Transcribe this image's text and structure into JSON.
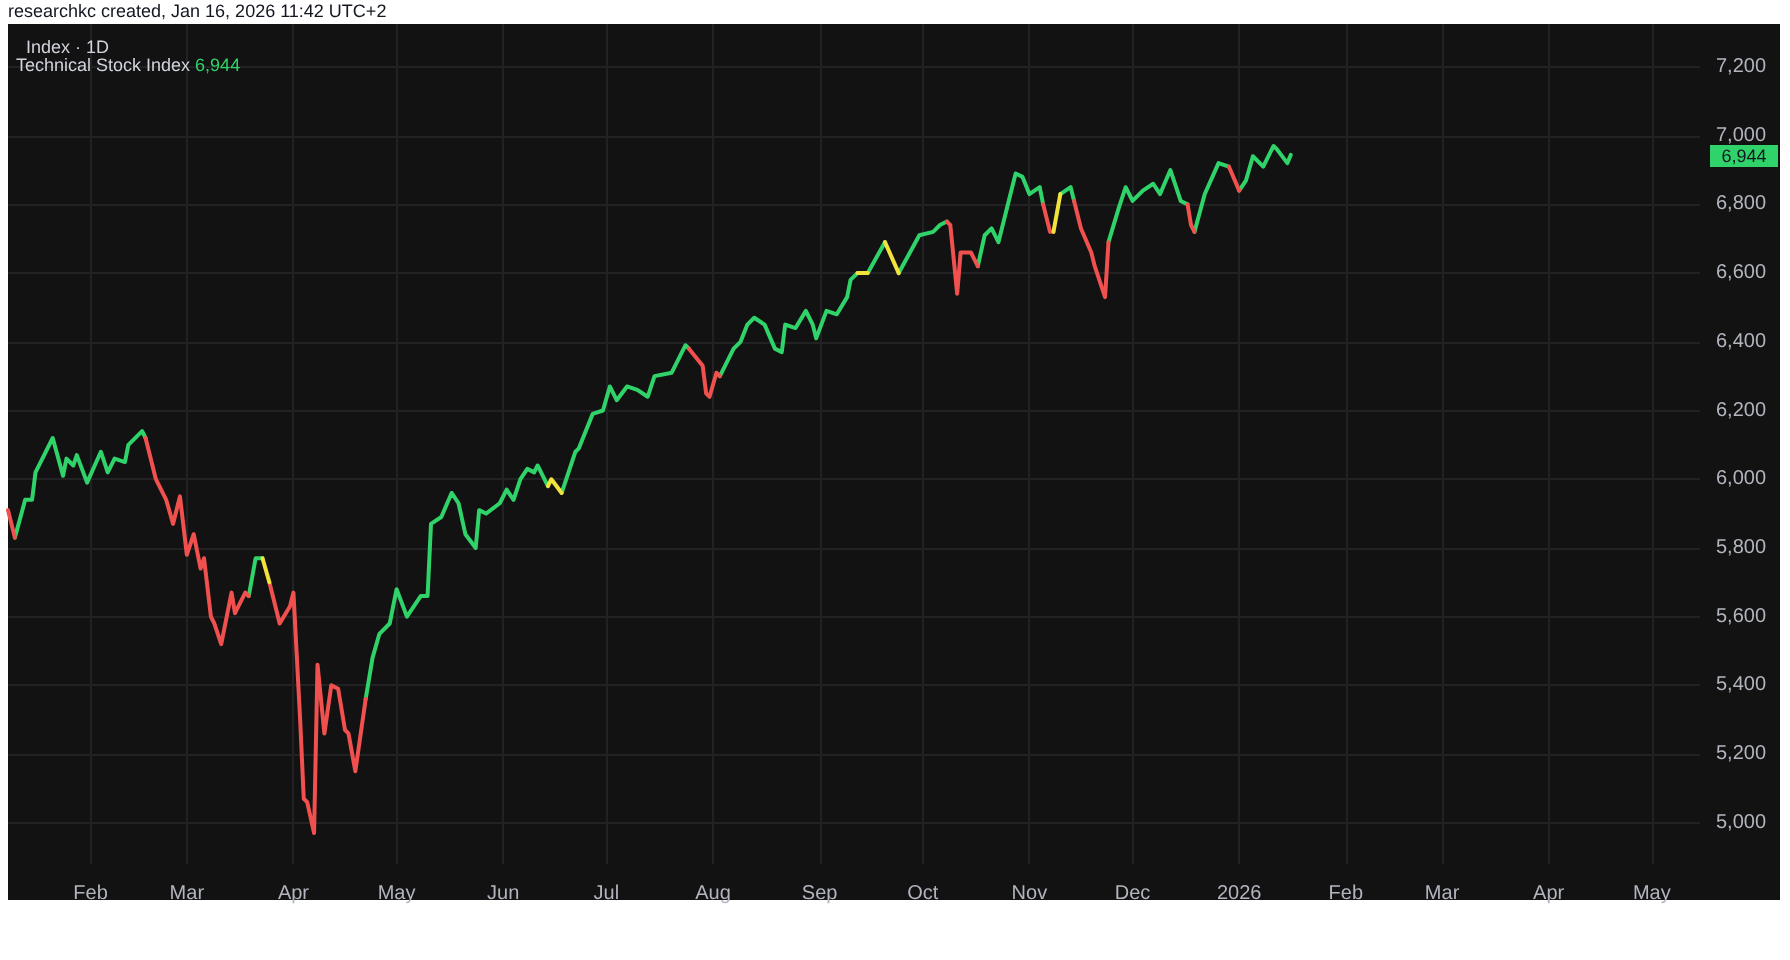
{
  "chart_data": {
    "type": "line",
    "title": "Index · 1D",
    "subtitle": "Technical Stock Index 6,944",
    "annotations": [
      "researchkc created, Jan 16, 2026 11:42 UTC+2",
      "6,944"
    ],
    "xlim": [
      "2025-01-08",
      "2026-05-15"
    ],
    "xticks": [
      {
        "value": "2025-02-01",
        "label": "Feb"
      },
      {
        "value": "2025-03-01",
        "label": "Mar"
      },
      {
        "value": "2025-04-01",
        "label": "Apr"
      },
      {
        "value": "2025-05-01",
        "label": "May"
      },
      {
        "value": "2025-06-01",
        "label": "Jun"
      },
      {
        "value": "2025-07-01",
        "label": "Jul"
      },
      {
        "value": "2025-08-01",
        "label": "Aug"
      },
      {
        "value": "2025-09-01",
        "label": "Sep"
      },
      {
        "value": "2025-10-01",
        "label": "Oct"
      },
      {
        "value": "2025-11-01",
        "label": "Nov"
      },
      {
        "value": "2025-12-01",
        "label": "Dec"
      },
      {
        "value": "2026-01-01",
        "label": "2026"
      },
      {
        "value": "2026-02-01",
        "label": "Feb"
      },
      {
        "value": "2026-03-01",
        "label": "Mar"
      },
      {
        "value": "2026-04-01",
        "label": "Apr"
      },
      {
        "value": "2026-05-01",
        "label": "May"
      }
    ],
    "ylim": [
      4880,
      7325
    ],
    "yticks": [
      {
        "value": 5000,
        "label": "5,000"
      },
      {
        "value": 5200,
        "label": "5,200"
      },
      {
        "value": 5400,
        "label": "5,400"
      },
      {
        "value": 5600,
        "label": "5,600"
      },
      {
        "value": 5800,
        "label": "5,800"
      },
      {
        "value": 6000,
        "label": "6,000"
      },
      {
        "value": 6200,
        "label": "6,200"
      },
      {
        "value": 6400,
        "label": "6,400"
      },
      {
        "value": 6600,
        "label": "6,600"
      },
      {
        "value": 6800,
        "label": "6,800"
      },
      {
        "value": 7000,
        "label": "7,000"
      },
      {
        "value": 7200,
        "label": "7,200"
      }
    ],
    "grid": true,
    "marker": "none",
    "line_style": "solid",
    "series": [
      {
        "color": "#2fd36a",
        "x": [
          "2025-01-10",
          "2025-01-13",
          "2025-01-15",
          "2025-01-16",
          "2025-01-21",
          "2025-01-24",
          "2025-01-25",
          "2025-01-27",
          "2025-01-28",
          "2025-01-31",
          "2025-02-04",
          "2025-02-06",
          "2025-02-08",
          "2025-02-11",
          "2025-02-12",
          "2025-02-16",
          "2025-02-17"
        ],
        "values": [
          5830,
          5940,
          5940,
          6020,
          6120,
          6010,
          6060,
          6040,
          6070,
          5990,
          6080,
          6020,
          6060,
          6050,
          6100,
          6140,
          6120
        ]
      },
      {
        "color": "#2fd36a",
        "x": [
          "2025-03-19",
          "2025-03-21",
          "2025-03-23"
        ],
        "values": [
          5660,
          5770,
          5770
        ]
      },
      {
        "color": "#2fd36a",
        "x": [
          "2025-04-22",
          "2025-04-24",
          "2025-04-26",
          "2025-04-29",
          "2025-05-01",
          "2025-05-04",
          "2025-05-08",
          "2025-05-10",
          "2025-05-11",
          "2025-05-14",
          "2025-05-17",
          "2025-05-19",
          "2025-05-21",
          "2025-05-24",
          "2025-05-25",
          "2025-05-27",
          "2025-05-31",
          "2025-06-02",
          "2025-06-04",
          "2025-06-06",
          "2025-06-08",
          "2025-06-10",
          "2025-06-11",
          "2025-06-14"
        ],
        "values": [
          5360,
          5480,
          5550,
          5580,
          5680,
          5600,
          5660,
          5660,
          5870,
          5890,
          5960,
          5930,
          5840,
          5800,
          5910,
          5900,
          5930,
          5970,
          5940,
          6000,
          6030,
          6020,
          6040,
          5980
        ]
      },
      {
        "color": "#2fd36a",
        "x": [
          "2025-06-18",
          "2025-06-22",
          "2025-06-23",
          "2025-06-27",
          "2025-06-30",
          "2025-07-02",
          "2025-07-04",
          "2025-07-07",
          "2025-07-10",
          "2025-07-13",
          "2025-07-15",
          "2025-07-20",
          "2025-07-24",
          "2025-07-25"
        ],
        "values": [
          5960,
          6080,
          6090,
          6190,
          6200,
          6270,
          6230,
          6270,
          6260,
          6240,
          6300,
          6310,
          6390,
          6380
        ]
      },
      {
        "color": "#2fd36a",
        "x": [
          "2025-08-03",
          "2025-08-05",
          "2025-08-07",
          "2025-08-09",
          "2025-08-11",
          "2025-08-13",
          "2025-08-16",
          "2025-08-19",
          "2025-08-21",
          "2025-08-22",
          "2025-08-25",
          "2025-08-28",
          "2025-08-30",
          "2025-08-31",
          "2025-09-03",
          "2025-09-06",
          "2025-09-09",
          "2025-09-10",
          "2025-09-12"
        ],
        "values": [
          6300,
          6340,
          6380,
          6400,
          6450,
          6470,
          6450,
          6380,
          6370,
          6450,
          6440,
          6490,
          6450,
          6410,
          6490,
          6480,
          6530,
          6580,
          6600
        ]
      },
      {
        "color": "#2fd36a",
        "x": [
          "2025-09-15",
          "2025-09-20"
        ],
        "values": [
          6600,
          6690
        ]
      },
      {
        "color": "#2fd36a",
        "x": [
          "2025-09-24",
          "2025-09-30",
          "2025-10-04",
          "2025-10-06",
          "2025-10-08"
        ],
        "values": [
          6600,
          6710,
          6720,
          6740,
          6750
        ]
      },
      {
        "color": "#2fd36a",
        "x": [
          "2025-10-17",
          "2025-10-19",
          "2025-10-21",
          "2025-10-23",
          "2025-10-26",
          "2025-10-28",
          "2025-10-30",
          "2025-11-01",
          "2025-11-04",
          "2025-11-05"
        ],
        "values": [
          6620,
          6710,
          6730,
          6690,
          6810,
          6890,
          6880,
          6830,
          6850,
          6800
        ]
      },
      {
        "color": "#2fd36a",
        "x": [
          "2025-11-10",
          "2025-11-13",
          "2025-11-14"
        ],
        "values": [
          6830,
          6850,
          6810
        ]
      },
      {
        "color": "#2fd36a",
        "x": [
          "2025-11-24",
          "2025-11-27",
          "2025-11-29",
          "2025-12-01",
          "2025-12-04",
          "2025-12-07",
          "2025-12-09",
          "2025-12-12",
          "2025-12-15",
          "2025-12-17"
        ],
        "values": [
          6690,
          6790,
          6850,
          6810,
          6840,
          6860,
          6830,
          6900,
          6810,
          6800
        ]
      },
      {
        "color": "#2fd36a",
        "x": [
          "2025-12-19",
          "2025-12-22",
          "2025-12-26",
          "2025-12-29"
        ],
        "values": [
          6720,
          6830,
          6920,
          6910
        ]
      },
      {
        "color": "#2fd36a",
        "x": [
          "2026-01-01",
          "2026-01-03",
          "2026-01-05",
          "2026-01-08",
          "2026-01-11",
          "2026-01-12",
          "2026-01-15",
          "2026-01-16"
        ],
        "values": [
          6840,
          6870,
          6940,
          6910,
          6970,
          6960,
          6920,
          6944
        ]
      },
      {
        "color": "#f0514f",
        "x": [
          "2025-01-08",
          "2025-01-10"
        ],
        "values": [
          5910,
          5830
        ]
      },
      {
        "color": "#f0514f",
        "x": [
          "2025-02-17",
          "2025-02-20",
          "2025-02-23",
          "2025-02-25",
          "2025-02-27",
          "2025-03-01",
          "2025-03-03",
          "2025-03-05",
          "2025-03-06",
          "2025-03-08",
          "2025-03-09",
          "2025-03-11",
          "2025-03-14",
          "2025-03-15",
          "2025-03-18",
          "2025-03-19"
        ],
        "values": [
          6120,
          6000,
          5940,
          5870,
          5950,
          5780,
          5840,
          5740,
          5770,
          5600,
          5580,
          5520,
          5670,
          5610,
          5670,
          5660
        ]
      },
      {
        "color": "#f0514f",
        "x": [
          "2025-03-25",
          "2025-03-28",
          "2025-03-31",
          "2025-04-01",
          "2025-04-03",
          "2025-04-04",
          "2025-04-05",
          "2025-04-07",
          "2025-04-08",
          "2025-04-10",
          "2025-04-12",
          "2025-04-14",
          "2025-04-16",
          "2025-04-17",
          "2025-04-19",
          "2025-04-22"
        ],
        "values": [
          5700,
          5580,
          5630,
          5670,
          5290,
          5070,
          5060,
          4970,
          5460,
          5260,
          5400,
          5390,
          5270,
          5260,
          5150,
          5360
        ]
      },
      {
        "color": "#f0514f",
        "x": [
          "2025-07-25",
          "2025-07-29",
          "2025-07-30",
          "2025-07-31",
          "2025-08-02",
          "2025-08-03"
        ],
        "values": [
          6380,
          6330,
          6250,
          6240,
          6310,
          6300
        ]
      },
      {
        "color": "#f0514f",
        "x": [
          "2025-10-08",
          "2025-10-09",
          "2025-10-11",
          "2025-10-12",
          "2025-10-15",
          "2025-10-17"
        ],
        "values": [
          6750,
          6740,
          6540,
          6660,
          6660,
          6620
        ]
      },
      {
        "color": "#f0514f",
        "x": [
          "2025-11-05",
          "2025-11-07",
          "2025-11-08"
        ],
        "values": [
          6800,
          6720,
          6720
        ]
      },
      {
        "color": "#f0514f",
        "x": [
          "2025-11-14",
          "2025-11-16",
          "2025-11-19",
          "2025-11-20",
          "2025-11-23",
          "2025-11-24"
        ],
        "values": [
          6810,
          6730,
          6660,
          6620,
          6530,
          6690
        ]
      },
      {
        "color": "#f0514f",
        "x": [
          "2025-12-17",
          "2025-12-18",
          "2025-12-19"
        ],
        "values": [
          6800,
          6740,
          6720
        ]
      },
      {
        "color": "#f0514f",
        "x": [
          "2025-12-29",
          "2026-01-01"
        ],
        "values": [
          6910,
          6840
        ]
      },
      {
        "color": "#f2e33c",
        "x": [
          "2025-03-23",
          "2025-03-25"
        ],
        "values": [
          5770,
          5700
        ]
      },
      {
        "color": "#f2e33c",
        "x": [
          "2025-06-14",
          "2025-06-15",
          "2025-06-18"
        ],
        "values": [
          5980,
          6000,
          5960
        ]
      },
      {
        "color": "#f2e33c",
        "x": [
          "2025-09-12",
          "2025-09-15"
        ],
        "values": [
          6600,
          6600
        ]
      },
      {
        "color": "#f2e33c",
        "x": [
          "2025-09-20",
          "2025-09-24"
        ],
        "values": [
          6690,
          6600
        ]
      },
      {
        "color": "#f2e33c",
        "x": [
          "2025-11-08",
          "2025-11-10"
        ],
        "values": [
          6720,
          6830
        ]
      }
    ]
  }
}
